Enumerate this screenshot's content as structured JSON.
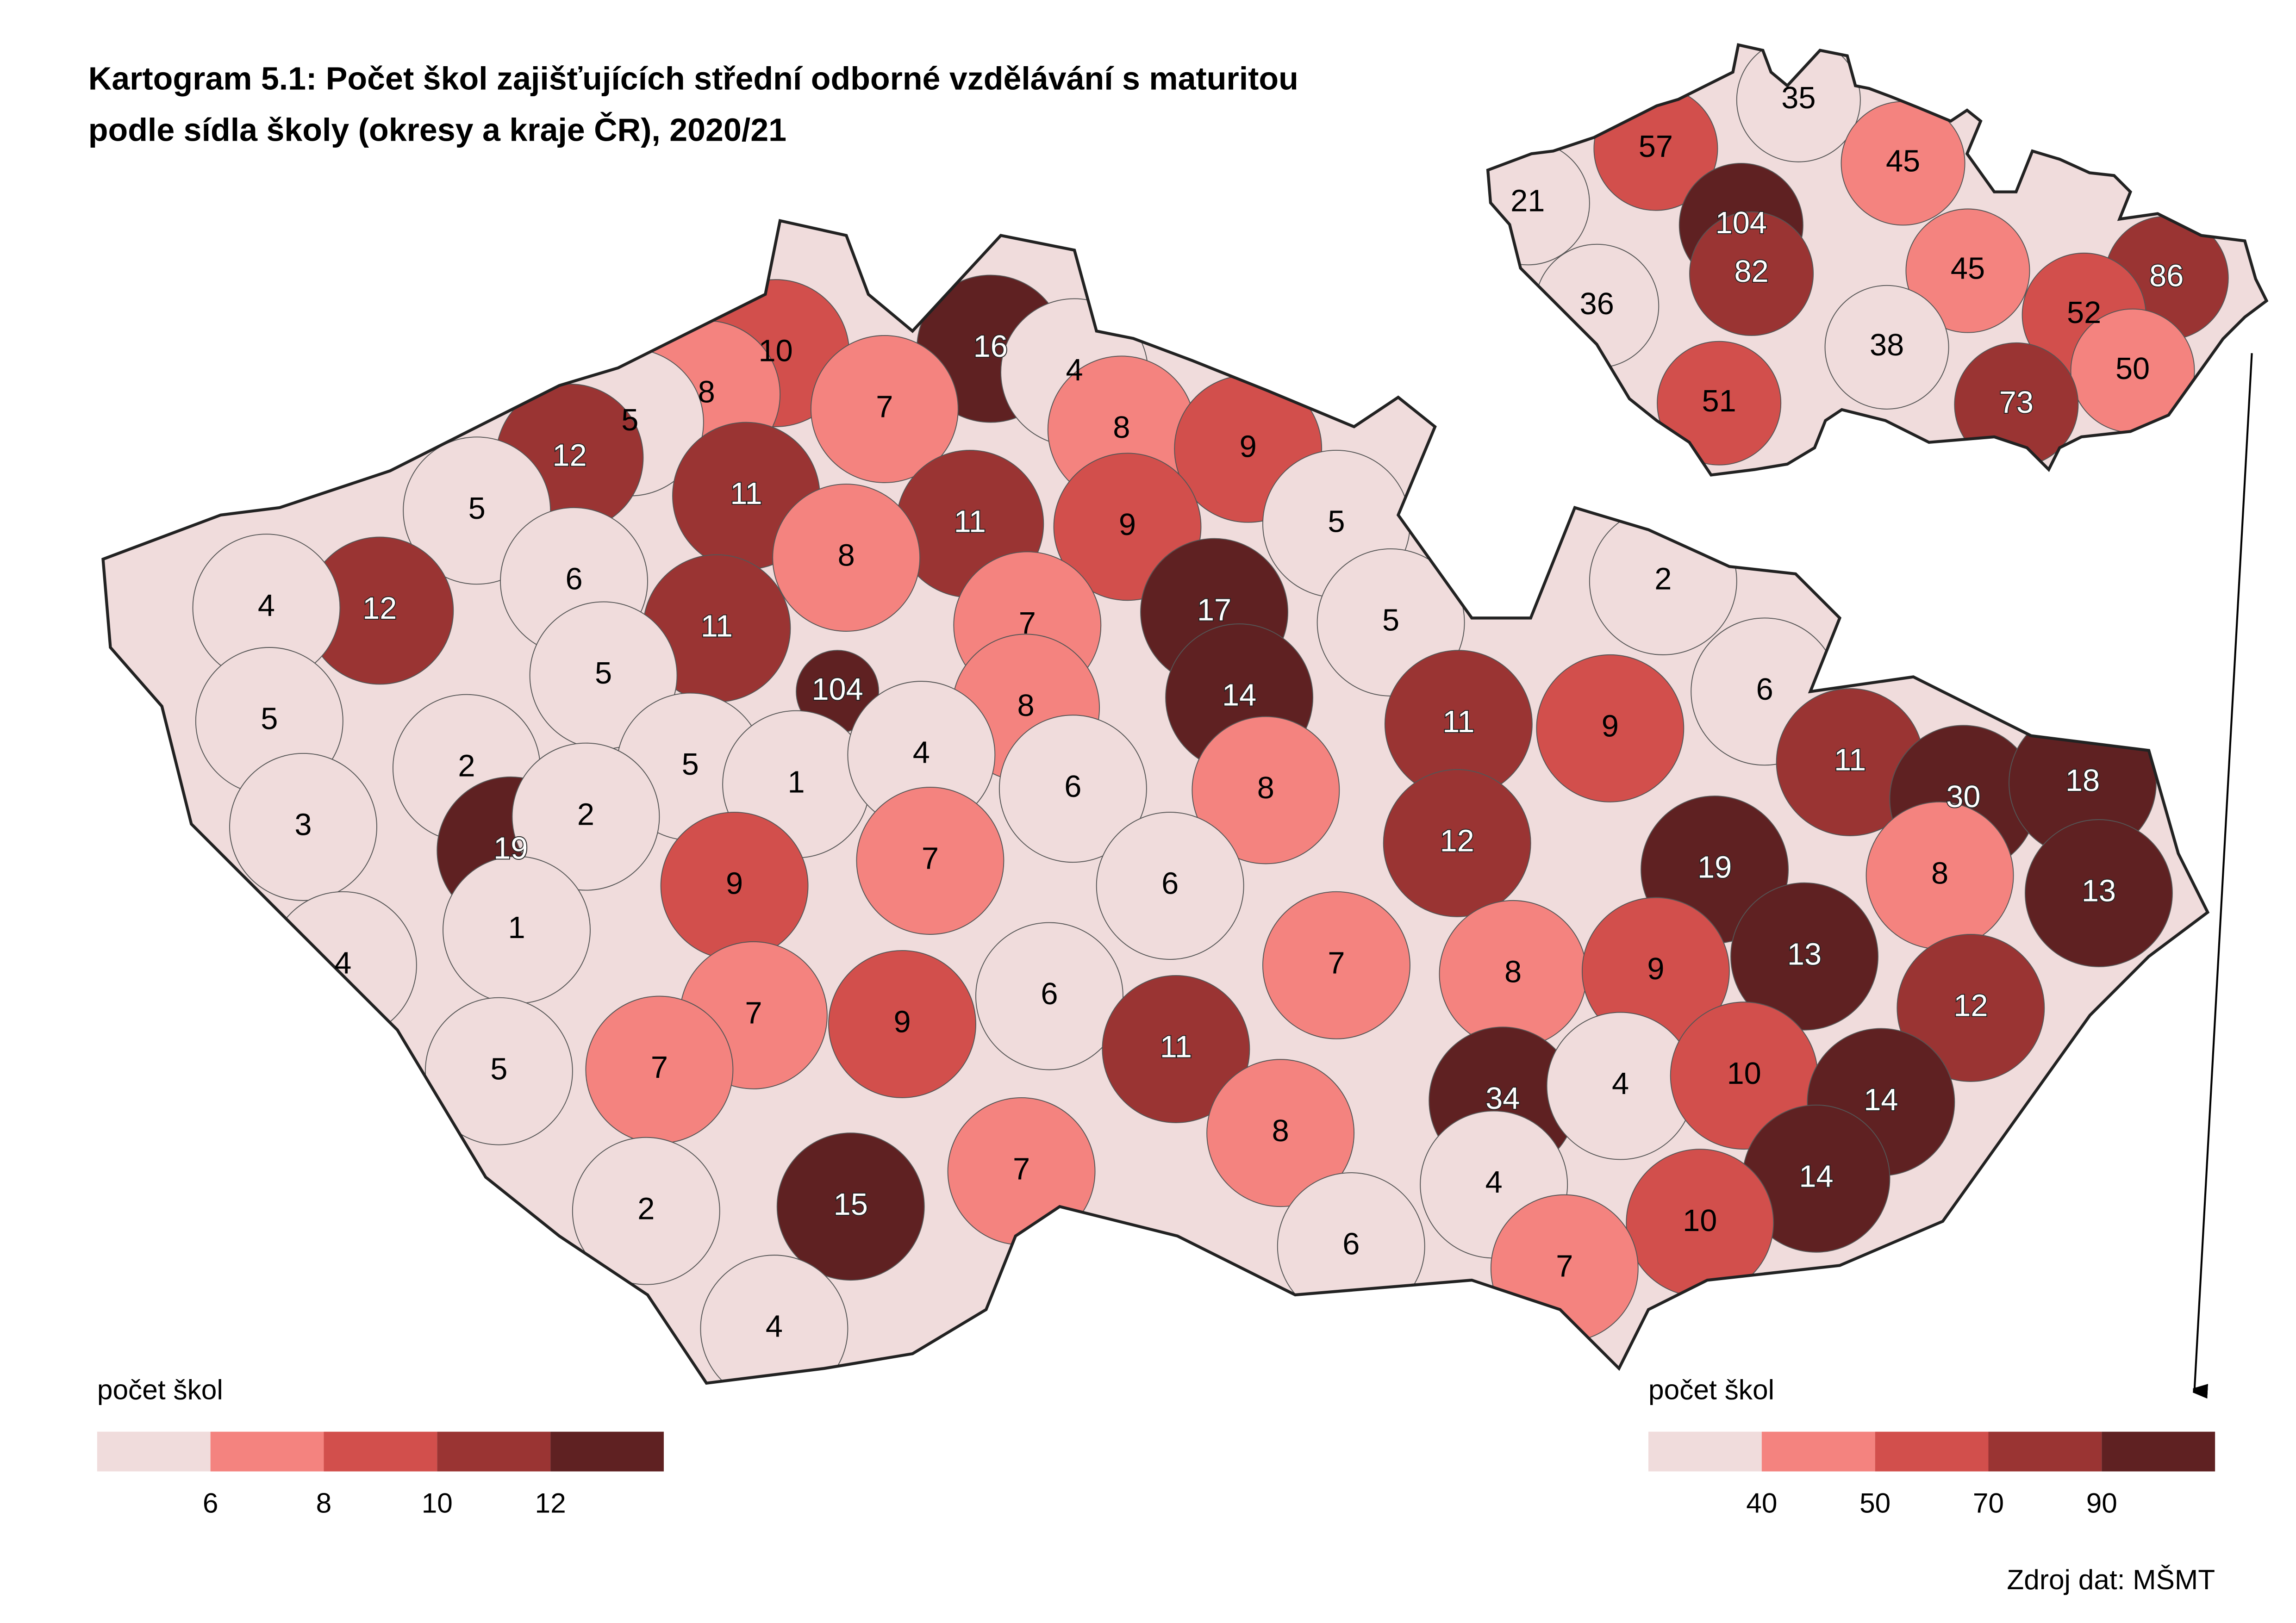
{
  "title": [
    "Kartogram 5.1: Počet škol zajišťujících střední odborné vzdělávání s maturitou",
    "podle sídla školy (okresy a kraje ČR), 2020/21"
  ],
  "colors": [
    "#f0dcdc",
    "#f4837f",
    "#d24f4c",
    "#9a3433",
    "#5f2122"
  ],
  "districts": {
    "values": [
      16,
      10,
      8,
      7,
      4,
      8,
      9,
      5,
      12,
      11,
      5,
      11,
      9,
      8,
      5,
      12,
      4,
      6,
      11,
      7,
      17,
      5,
      2,
      5,
      104,
      8,
      14,
      5,
      11,
      9,
      6,
      2,
      5,
      1,
      4,
      6,
      8,
      11,
      30,
      18,
      3,
      19,
      2,
      7,
      12,
      19,
      8,
      13,
      9,
      6,
      1,
      4,
      7,
      8,
      9,
      13,
      12,
      7,
      9,
      6,
      11,
      5,
      7,
      34,
      4,
      10,
      14,
      15,
      7,
      8,
      2,
      4,
      14,
      10,
      6,
      7,
      4
    ]
  },
  "regions": {
    "values": [
      35,
      57,
      45,
      21,
      104,
      82,
      45,
      86,
      36,
      52,
      38,
      50,
      51,
      73
    ]
  },
  "legend_districts": {
    "title": "počet škol",
    "breaks": [
      6,
      8,
      10,
      12
    ]
  },
  "legend_regions": {
    "title": "počet škol",
    "breaks": [
      40,
      50,
      70,
      90
    ]
  },
  "source": "Zdroj dat: MŠMT"
}
